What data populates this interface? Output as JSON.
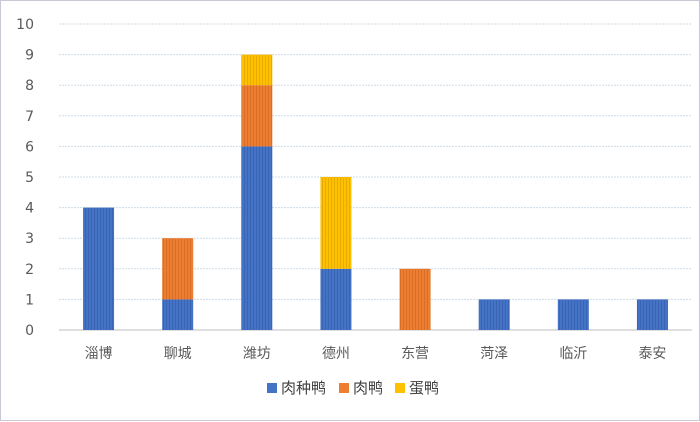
{
  "chart_data": {
    "type": "bar",
    "stacked": true,
    "categories": [
      "淄博",
      "聊城",
      "潍坊",
      "德州",
      "东营",
      "菏泽",
      "临沂",
      "泰安"
    ],
    "series": [
      {
        "name": "肉种鸭",
        "color": "#4472C4",
        "values": [
          4,
          1,
          6,
          2,
          0,
          1,
          1,
          1
        ]
      },
      {
        "name": "肉鸭",
        "color": "#ED7D31",
        "values": [
          0,
          2,
          2,
          0,
          2,
          0,
          0,
          0
        ]
      },
      {
        "name": "蛋鸭",
        "color": "#FFC000",
        "values": [
          0,
          0,
          1,
          3,
          0,
          0,
          0,
          0
        ]
      }
    ],
    "title": "",
    "xlabel": "",
    "ylabel": "",
    "ylim": [
      0,
      10
    ],
    "yticks": [
      0,
      1,
      2,
      3,
      4,
      5,
      6,
      7,
      8,
      9,
      10
    ],
    "grid": true,
    "legend": "bottom"
  }
}
